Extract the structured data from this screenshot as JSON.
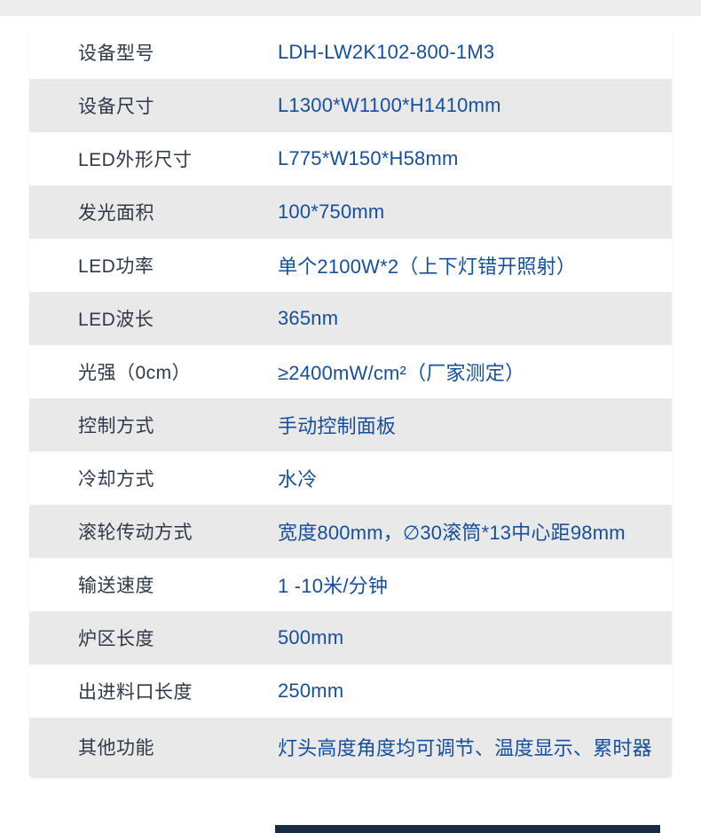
{
  "theme": {
    "page_bg": "#ffffff",
    "top_strip_color": "#ededed",
    "row_alt_color": "#e9e9e9",
    "label_color": "#2f3949",
    "value_color": "#164f9e",
    "footer_bar_color": "#1c2b47"
  },
  "spec_table": {
    "rows": [
      {
        "label": "设备型号",
        "value": "LDH-LW2K102-800-1M3"
      },
      {
        "label": "设备尺寸",
        "value": "L1300*W1100*H1410mm"
      },
      {
        "label": "LED外形尺寸",
        "value": "L775*W150*H58mm"
      },
      {
        "label": "发光面积",
        "value": "100*750mm"
      },
      {
        "label": "LED功率",
        "value": "单个2100W*2（上下灯错开照射）"
      },
      {
        "label": "LED波长",
        "value": "365nm"
      },
      {
        "label": "光强（0cm）",
        "value": "≥2400mW/cm²（厂家测定）"
      },
      {
        "label": "控制方式",
        "value": "手动控制面板"
      },
      {
        "label": "冷却方式",
        "value": "水冷"
      },
      {
        "label": "滚轮传动方式",
        "value": "宽度800mm，∅30滚筒*13中心距98mm"
      },
      {
        "label": "输送速度",
        "value": "1 -10米/分钟"
      },
      {
        "label": "炉区长度",
        "value": "500mm"
      },
      {
        "label": "出进料口长度",
        "value": "250mm"
      },
      {
        "label": "其他功能",
        "value": "灯头高度角度均可调节、温度显示、累时器"
      }
    ]
  }
}
